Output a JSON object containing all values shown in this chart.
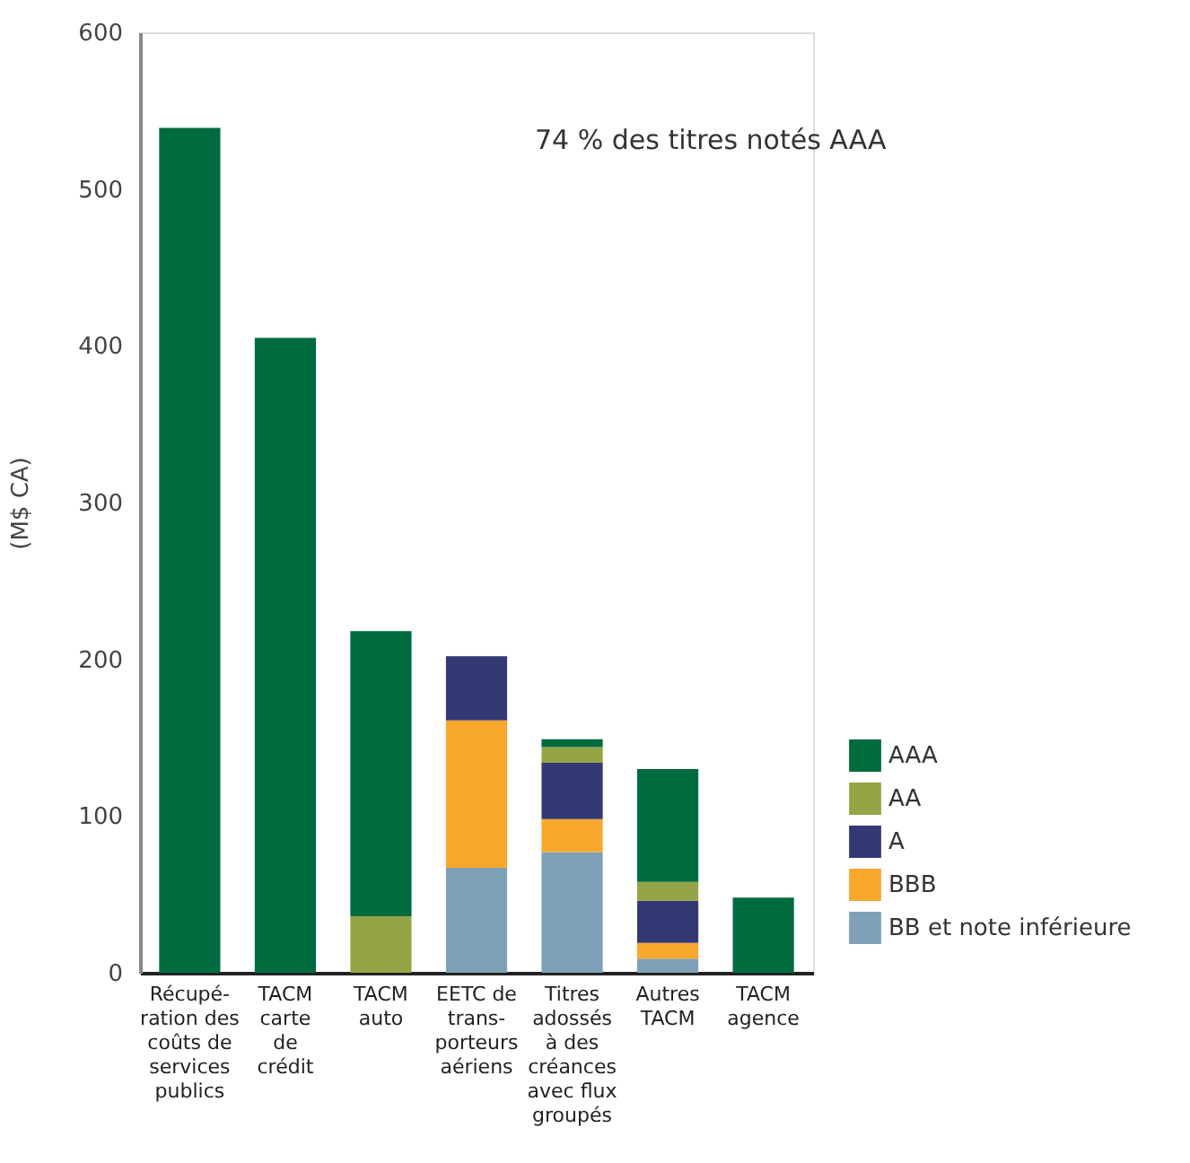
{
  "chart_data": {
    "type": "bar",
    "stacked": true,
    "ylabel": "(M$ CA)",
    "categories": [
      "Récupé-\nration des\ncoûts de\nservices\npublics",
      "TACM\ncarte\nde\ncrédit",
      "TACM\nauto",
      "EETC de\ntrans-\nporteurs\naériens",
      "Titres\nadossés\nà des\ncréances\navec flux\ngroupés",
      "Autres\nTACM",
      "TACM\nagence"
    ],
    "series": [
      {
        "name": "BB et note inférieure",
        "color": "#7ea1b7",
        "values": [
          0,
          0,
          0,
          67,
          77,
          9,
          0
        ]
      },
      {
        "name": "BBB",
        "color": "#f9a82e",
        "values": [
          0,
          0,
          0,
          94,
          21,
          10,
          0
        ]
      },
      {
        "name": "A",
        "color": "#343872",
        "values": [
          0,
          0,
          0,
          41,
          36,
          27,
          0
        ]
      },
      {
        "name": "AA",
        "color": "#94a545",
        "values": [
          0,
          0,
          36,
          0,
          10,
          12,
          0
        ]
      },
      {
        "name": "AAA",
        "color": "#006b3f",
        "values": [
          539,
          405,
          182,
          0,
          5,
          72,
          48
        ]
      }
    ],
    "ylim": [
      0,
      600
    ],
    "yticks": [
      0,
      100,
      200,
      300,
      400,
      500,
      600
    ],
    "grid": false,
    "legend": "right",
    "annotations": [
      "74 % des titres notés AAA"
    ]
  }
}
